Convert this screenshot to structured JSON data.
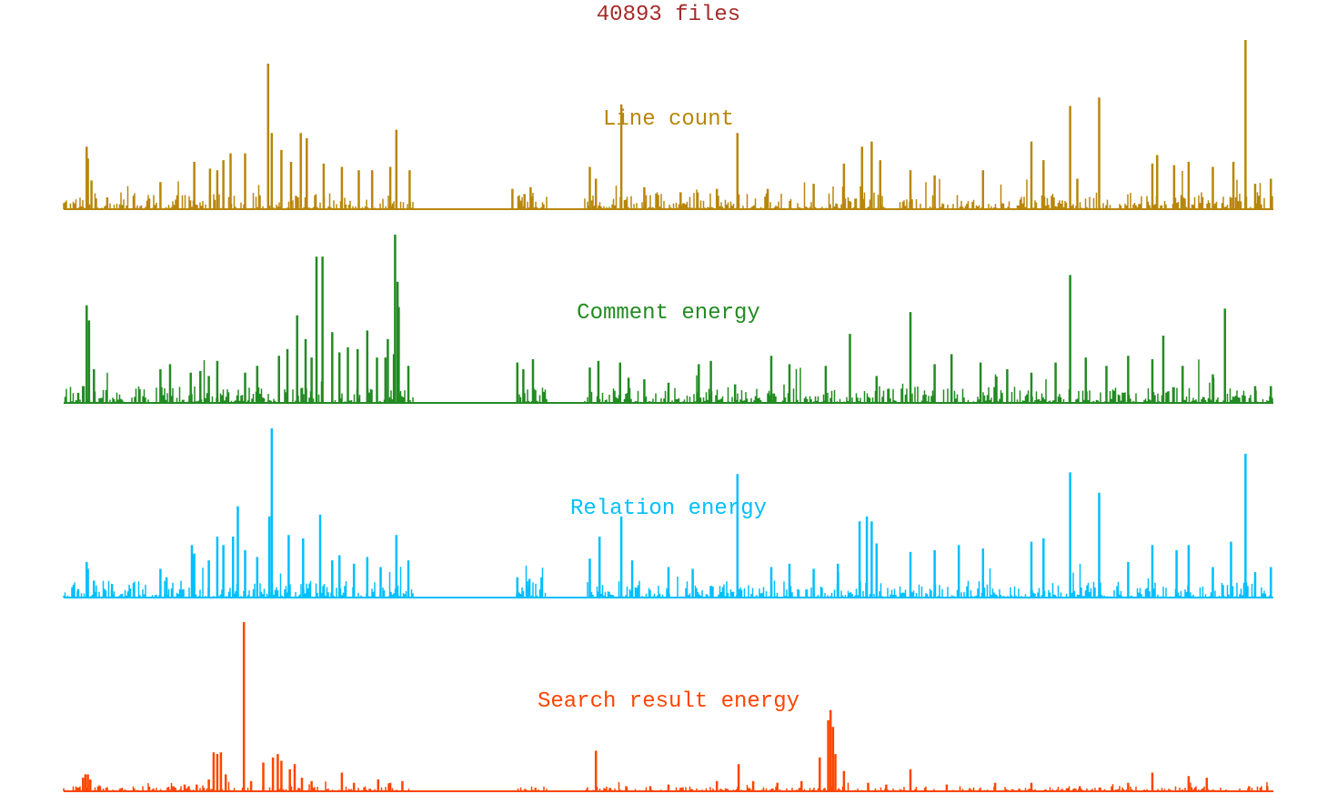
{
  "chart_data": {
    "type": "area",
    "title": "40893 files",
    "title_color": "#a52a2a",
    "xlabel": "",
    "ylabel": "",
    "grid": false,
    "legend": "none",
    "series": [
      {
        "name": "Line count",
        "color": "#b8860b",
        "peaks": [
          [
            0.019,
            0.37
          ],
          [
            0.02,
            0.3
          ],
          [
            0.023,
            0.17
          ],
          [
            0.036,
            0.07
          ],
          [
            0.08,
            0.16
          ],
          [
            0.108,
            0.28
          ],
          [
            0.121,
            0.24
          ],
          [
            0.127,
            0.23
          ],
          [
            0.132,
            0.29
          ],
          [
            0.138,
            0.33
          ],
          [
            0.15,
            0.33
          ],
          [
            0.169,
            0.86
          ],
          [
            0.172,
            0.45
          ],
          [
            0.18,
            0.35
          ],
          [
            0.188,
            0.28
          ],
          [
            0.196,
            0.45
          ],
          [
            0.201,
            0.42
          ],
          [
            0.215,
            0.27
          ],
          [
            0.23,
            0.25
          ],
          [
            0.244,
            0.23
          ],
          [
            0.255,
            0.23
          ],
          [
            0.27,
            0.25
          ],
          [
            0.275,
            0.47
          ],
          [
            0.286,
            0.23
          ],
          [
            0.371,
            0.12
          ],
          [
            0.381,
            0.09
          ],
          [
            0.386,
            0.13
          ],
          [
            0.435,
            0.25
          ],
          [
            0.44,
            0.18
          ],
          [
            0.461,
            0.62
          ],
          [
            0.48,
            0.13
          ],
          [
            0.51,
            0.1
          ],
          [
            0.54,
            0.12
          ],
          [
            0.557,
            0.45
          ],
          [
            0.582,
            0.12
          ],
          [
            0.62,
            0.15
          ],
          [
            0.645,
            0.27
          ],
          [
            0.66,
            0.37
          ],
          [
            0.668,
            0.4
          ],
          [
            0.675,
            0.29
          ],
          [
            0.7,
            0.23
          ],
          [
            0.72,
            0.2
          ],
          [
            0.76,
            0.23
          ],
          [
            0.8,
            0.4
          ],
          [
            0.81,
            0.29
          ],
          [
            0.832,
            0.61
          ],
          [
            0.838,
            0.18
          ],
          [
            0.856,
            0.66
          ],
          [
            0.9,
            0.27
          ],
          [
            0.904,
            0.32
          ],
          [
            0.918,
            0.26
          ],
          [
            0.93,
            0.28
          ],
          [
            0.95,
            0.25
          ],
          [
            0.967,
            0.28
          ],
          [
            0.977,
            1.0
          ],
          [
            0.985,
            0.15
          ],
          [
            0.998,
            0.18
          ]
        ]
      },
      {
        "name": "Comment energy",
        "color": "#228b22",
        "peaks": [
          [
            0.012,
            0.06
          ],
          [
            0.016,
            0.1
          ],
          [
            0.019,
            0.58
          ],
          [
            0.021,
            0.49
          ],
          [
            0.025,
            0.2
          ],
          [
            0.08,
            0.2
          ],
          [
            0.088,
            0.23
          ],
          [
            0.105,
            0.18
          ],
          [
            0.113,
            0.19
          ],
          [
            0.12,
            0.16
          ],
          [
            0.127,
            0.25
          ],
          [
            0.15,
            0.18
          ],
          [
            0.16,
            0.22
          ],
          [
            0.178,
            0.28
          ],
          [
            0.185,
            0.32
          ],
          [
            0.193,
            0.52
          ],
          [
            0.2,
            0.38
          ],
          [
            0.205,
            0.27
          ],
          [
            0.209,
            0.87
          ],
          [
            0.214,
            0.87
          ],
          [
            0.222,
            0.42
          ],
          [
            0.228,
            0.3
          ],
          [
            0.235,
            0.33
          ],
          [
            0.243,
            0.32
          ],
          [
            0.251,
            0.43
          ],
          [
            0.259,
            0.27
          ],
          [
            0.266,
            0.27
          ],
          [
            0.273,
            0.29
          ],
          [
            0.277,
            0.57
          ],
          [
            0.285,
            0.22
          ],
          [
            0.274,
            1.0
          ],
          [
            0.276,
            0.72
          ],
          [
            0.268,
            0.38
          ],
          [
            0.375,
            0.24
          ],
          [
            0.38,
            0.2
          ],
          [
            0.388,
            0.26
          ],
          [
            0.435,
            0.21
          ],
          [
            0.442,
            0.25
          ],
          [
            0.46,
            0.24
          ],
          [
            0.467,
            0.15
          ],
          [
            0.48,
            0.14
          ],
          [
            0.5,
            0.12
          ],
          [
            0.525,
            0.23
          ],
          [
            0.535,
            0.25
          ],
          [
            0.555,
            0.11
          ],
          [
            0.585,
            0.28
          ],
          [
            0.6,
            0.23
          ],
          [
            0.63,
            0.22
          ],
          [
            0.65,
            0.41
          ],
          [
            0.672,
            0.16
          ],
          [
            0.7,
            0.54
          ],
          [
            0.72,
            0.23
          ],
          [
            0.734,
            0.29
          ],
          [
            0.758,
            0.24
          ],
          [
            0.78,
            0.2
          ],
          [
            0.8,
            0.18
          ],
          [
            0.82,
            0.24
          ],
          [
            0.832,
            0.76
          ],
          [
            0.845,
            0.27
          ],
          [
            0.862,
            0.22
          ],
          [
            0.88,
            0.28
          ],
          [
            0.9,
            0.26
          ],
          [
            0.909,
            0.4
          ],
          [
            0.925,
            0.22
          ],
          [
            0.95,
            0.17
          ],
          [
            0.96,
            0.56
          ],
          [
            0.985,
            0.1
          ],
          [
            0.998,
            0.1
          ]
        ]
      },
      {
        "name": "Relation energy",
        "color": "#00bfff",
        "peaks": [
          [
            0.012,
            0.05
          ],
          [
            0.019,
            0.21
          ],
          [
            0.02,
            0.17
          ],
          [
            0.025,
            0.1
          ],
          [
            0.04,
            0.08
          ],
          [
            0.08,
            0.17
          ],
          [
            0.085,
            0.12
          ],
          [
            0.106,
            0.31
          ],
          [
            0.108,
            0.26
          ],
          [
            0.12,
            0.22
          ],
          [
            0.127,
            0.36
          ],
          [
            0.132,
            0.31
          ],
          [
            0.14,
            0.36
          ],
          [
            0.144,
            0.54
          ],
          [
            0.15,
            0.28
          ],
          [
            0.16,
            0.24
          ],
          [
            0.172,
            1.0
          ],
          [
            0.17,
            0.48
          ],
          [
            0.186,
            0.37
          ],
          [
            0.198,
            0.35
          ],
          [
            0.212,
            0.49
          ],
          [
            0.222,
            0.22
          ],
          [
            0.228,
            0.25
          ],
          [
            0.24,
            0.2
          ],
          [
            0.251,
            0.24
          ],
          [
            0.262,
            0.18
          ],
          [
            0.275,
            0.37
          ],
          [
            0.285,
            0.22
          ],
          [
            0.375,
            0.12
          ],
          [
            0.385,
            0.11
          ],
          [
            0.395,
            0.12
          ],
          [
            0.435,
            0.23
          ],
          [
            0.443,
            0.36
          ],
          [
            0.461,
            0.48
          ],
          [
            0.47,
            0.22
          ],
          [
            0.5,
            0.18
          ],
          [
            0.52,
            0.17
          ],
          [
            0.557,
            0.73
          ],
          [
            0.585,
            0.18
          ],
          [
            0.6,
            0.2
          ],
          [
            0.62,
            0.17
          ],
          [
            0.64,
            0.2
          ],
          [
            0.658,
            0.45
          ],
          [
            0.664,
            0.48
          ],
          [
            0.668,
            0.45
          ],
          [
            0.672,
            0.32
          ],
          [
            0.7,
            0.27
          ],
          [
            0.72,
            0.28
          ],
          [
            0.74,
            0.31
          ],
          [
            0.76,
            0.29
          ],
          [
            0.8,
            0.33
          ],
          [
            0.81,
            0.35
          ],
          [
            0.832,
            0.74
          ],
          [
            0.856,
            0.62
          ],
          [
            0.88,
            0.21
          ],
          [
            0.9,
            0.31
          ],
          [
            0.92,
            0.28
          ],
          [
            0.93,
            0.31
          ],
          [
            0.95,
            0.18
          ],
          [
            0.965,
            0.33
          ],
          [
            0.977,
            0.85
          ],
          [
            0.985,
            0.15
          ],
          [
            0.998,
            0.18
          ]
        ]
      },
      {
        "name": "Search result energy",
        "color": "#ff4500",
        "peaks": [
          [
            0.016,
            0.08
          ],
          [
            0.018,
            0.1
          ],
          [
            0.02,
            0.1
          ],
          [
            0.022,
            0.07
          ],
          [
            0.03,
            0.03
          ],
          [
            0.09,
            0.03
          ],
          [
            0.1,
            0.04
          ],
          [
            0.11,
            0.04
          ],
          [
            0.12,
            0.07
          ],
          [
            0.124,
            0.23
          ],
          [
            0.127,
            0.22
          ],
          [
            0.13,
            0.23
          ],
          [
            0.134,
            0.1
          ],
          [
            0.149,
            1.0
          ],
          [
            0.155,
            0.06
          ],
          [
            0.165,
            0.17
          ],
          [
            0.173,
            0.2
          ],
          [
            0.177,
            0.22
          ],
          [
            0.18,
            0.18
          ],
          [
            0.187,
            0.13
          ],
          [
            0.191,
            0.16
          ],
          [
            0.197,
            0.08
          ],
          [
            0.205,
            0.06
          ],
          [
            0.23,
            0.11
          ],
          [
            0.24,
            0.05
          ],
          [
            0.26,
            0.07
          ],
          [
            0.27,
            0.05
          ],
          [
            0.28,
            0.06
          ],
          [
            0.39,
            0.02
          ],
          [
            0.44,
            0.24
          ],
          [
            0.465,
            0.03
          ],
          [
            0.485,
            0.03
          ],
          [
            0.5,
            0.04
          ],
          [
            0.54,
            0.06
          ],
          [
            0.558,
            0.16
          ],
          [
            0.57,
            0.06
          ],
          [
            0.59,
            0.05
          ],
          [
            0.61,
            0.06
          ],
          [
            0.625,
            0.2
          ],
          [
            0.632,
            0.42
          ],
          [
            0.634,
            0.48
          ],
          [
            0.636,
            0.38
          ],
          [
            0.638,
            0.22
          ],
          [
            0.645,
            0.12
          ],
          [
            0.665,
            0.05
          ],
          [
            0.68,
            0.04
          ],
          [
            0.7,
            0.13
          ],
          [
            0.73,
            0.04
          ],
          [
            0.77,
            0.05
          ],
          [
            0.8,
            0.05
          ],
          [
            0.84,
            0.03
          ],
          [
            0.88,
            0.05
          ],
          [
            0.9,
            0.11
          ],
          [
            0.93,
            0.09
          ],
          [
            0.945,
            0.08
          ],
          [
            0.98,
            0.03
          ],
          [
            0.995,
            0.03
          ]
        ]
      }
    ]
  }
}
